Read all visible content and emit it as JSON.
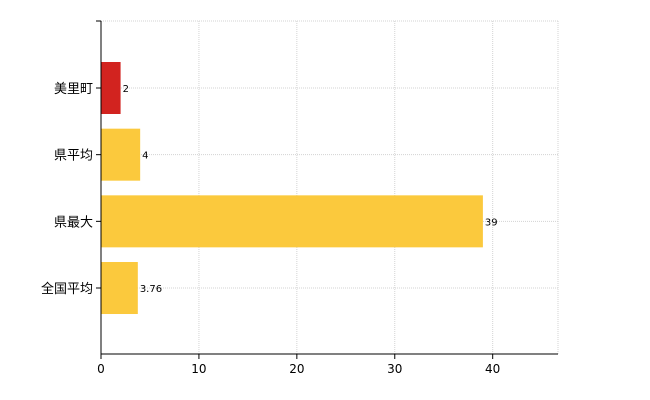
{
  "chart_data": {
    "type": "bar",
    "orientation": "horizontal",
    "title": "",
    "xlabel": "",
    "ylabel": "",
    "categories": [
      "美里町",
      "県平均",
      "県最大",
      "全国平均"
    ],
    "values": [
      2,
      4,
      39,
      3.76
    ],
    "value_labels": [
      "2",
      "4",
      "39",
      "3.76"
    ],
    "bar_colors": [
      "#d2231f",
      "#fbc93d",
      "#fbc93d",
      "#fbc93d"
    ],
    "xlim": [
      0,
      46.67
    ],
    "x_ticks": [
      0,
      10,
      20,
      30,
      40
    ],
    "x_tick_labels": [
      "0",
      "10",
      "20",
      "30",
      "40"
    ],
    "grid": true,
    "grid_color": "#d3d3d3",
    "legend": "none"
  }
}
